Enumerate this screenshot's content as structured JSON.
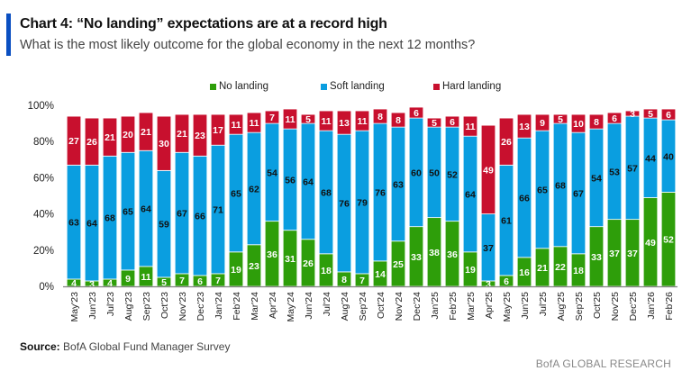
{
  "header": {
    "title": "Chart 4: “No landing” expectations are at a record high",
    "subtitle": "What is the most likely outcome for the global economy in the next 12 months?"
  },
  "footer": {
    "source_label": "Source:",
    "source_text": "BofA Global Fund Manager Survey",
    "brand": "BofA GLOBAL RESEARCH"
  },
  "chart_data": {
    "type": "bar",
    "stacked": true,
    "title": "Chart 4: “No landing” expectations are at a record high",
    "subtitle": "What is the most likely outcome for the global economy in the next 12 months?",
    "xlabel": "",
    "ylabel": "",
    "ylim": [
      0,
      100
    ],
    "yticks": [
      "0%",
      "20%",
      "40%",
      "60%",
      "80%",
      "100%"
    ],
    "grid": false,
    "legend_position": "top-center",
    "categories": [
      "May'23",
      "Jun'23",
      "Jul'23",
      "Aug'23",
      "Sep'23",
      "Oct'23",
      "Nov'23",
      "Dec'23",
      "Jan'24",
      "Feb'24",
      "Mar'24",
      "Apr'24",
      "May'24",
      "Jun'24",
      "Jul'24",
      "Aug'24",
      "Sep'24",
      "Oct'24",
      "Nov'24",
      "Dec'24",
      "Jan'25",
      "Feb'25",
      "Mar'25",
      "Apr'25",
      "May'25",
      "Jun'25",
      "Jul'25",
      "Aug'25",
      "Sep'25",
      "Oct'25",
      "Nov'25",
      "Dec'25",
      "Jan'26",
      "Feb'26"
    ],
    "series": [
      {
        "name": "No landing",
        "color": "#2e9e0a",
        "label_color": "#ffffff",
        "values": [
          4,
          3,
          4,
          9,
          11,
          5,
          7,
          6,
          7,
          19,
          23,
          36,
          31,
          26,
          18,
          8,
          7,
          14,
          25,
          33,
          38,
          36,
          19,
          3,
          6,
          16,
          21,
          22,
          18,
          33,
          37,
          37,
          49,
          52
        ]
      },
      {
        "name": "Soft landing",
        "color": "#0a9ee0",
        "label_color": "#111111",
        "values": [
          63,
          64,
          68,
          65,
          64,
          59,
          67,
          66,
          71,
          65,
          62,
          54,
          56,
          64,
          68,
          76,
          79,
          76,
          63,
          60,
          50,
          52,
          64,
          37,
          61,
          66,
          65,
          68,
          67,
          54,
          53,
          57,
          44,
          40
        ]
      },
      {
        "name": "Hard landing",
        "color": "#c8102e",
        "label_color": "#ffffff",
        "values": [
          27,
          26,
          21,
          20,
          21,
          30,
          21,
          23,
          17,
          11,
          11,
          7,
          11,
          5,
          11,
          13,
          11,
          8,
          8,
          6,
          5,
          6,
          11,
          49,
          26,
          13,
          9,
          5,
          10,
          8,
          6,
          3,
          5,
          6
        ]
      }
    ]
  }
}
